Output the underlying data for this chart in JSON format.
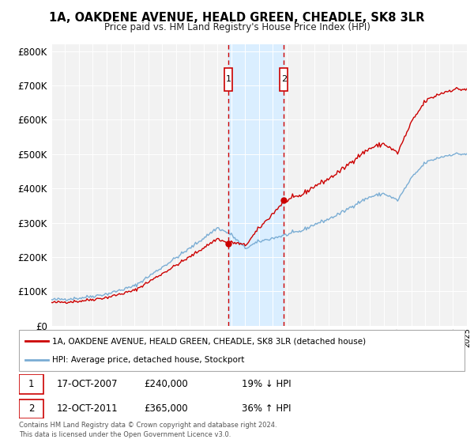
{
  "title": "1A, OAKDENE AVENUE, HEALD GREEN, CHEADLE, SK8 3LR",
  "subtitle": "Price paid vs. HM Land Registry's House Price Index (HPI)",
  "legend_line1": "1A, OAKDENE AVENUE, HEALD GREEN, CHEADLE, SK8 3LR (detached house)",
  "legend_line2": "HPI: Average price, detached house, Stockport",
  "transaction1_label": "1",
  "transaction1_date": "17-OCT-2007",
  "transaction1_price": "£240,000",
  "transaction1_hpi": "19% ↓ HPI",
  "transaction1_year": 2007.79,
  "transaction1_value": 240000,
  "transaction2_label": "2",
  "transaction2_date": "12-OCT-2011",
  "transaction2_price": "£365,000",
  "transaction2_hpi": "36% ↑ HPI",
  "transaction2_year": 2011.79,
  "transaction2_value": 365000,
  "hpi_color": "#7aadd4",
  "price_color": "#cc0000",
  "highlight_color": "#daeeff",
  "vline_color": "#cc0000",
  "ytick_labels": [
    "£0",
    "£100K",
    "£200K",
    "£300K",
    "£400K",
    "£500K",
    "£600K",
    "£700K",
    "£800K"
  ],
  "yticks": [
    0,
    100000,
    200000,
    300000,
    400000,
    500000,
    600000,
    700000,
    800000
  ],
  "xmin": 1995,
  "xmax": 2025,
  "ymin": 0,
  "ymax": 820000,
  "footer": "Contains HM Land Registry data © Crown copyright and database right 2024.\nThis data is licensed under the Open Government Licence v3.0.",
  "box_color": "#cc0000",
  "bg_color": "#f2f2f2"
}
